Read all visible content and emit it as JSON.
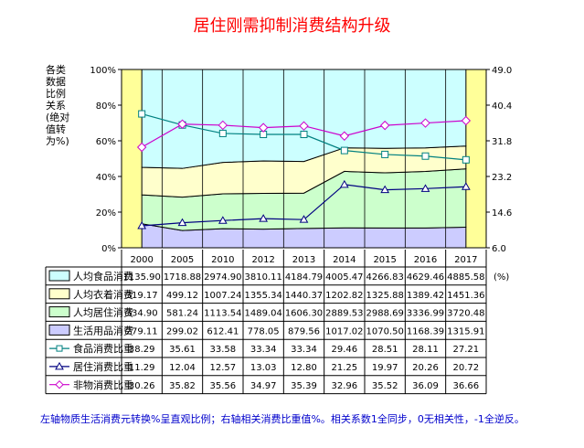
{
  "chart_data": {
    "type": "area",
    "title": "居住刚需抑制消费结构升级",
    "ylabel": "各类\n数据\n比例\n关系\n(绝对\n值转\n为%)",
    "categories": [
      "2000",
      "2005",
      "2010",
      "2012",
      "2013",
      "2014",
      "2015",
      "2016",
      "2017"
    ],
    "left_axis": {
      "ticks": [
        "0%",
        "20%",
        "40%",
        "60%",
        "80%",
        "100%"
      ],
      "range": [
        0,
        100
      ]
    },
    "right_axis": {
      "ticks": [
        "6.0",
        "14.6",
        "23.2",
        "31.8",
        "40.4",
        "49.0"
      ],
      "range": [
        6.0,
        49.0
      ]
    },
    "unit_label": "(%)",
    "area_series": [
      {
        "name": "人均食品消费",
        "color": "#ccffff",
        "values": [
          1135.9,
          1718.88,
          2974.9,
          3810.11,
          4184.79,
          4005.47,
          4266.83,
          4629.46,
          4885.58
        ]
      },
      {
        "name": "人均衣着消费",
        "color": "#ffffcc",
        "values": [
          319.17,
          499.12,
          1007.24,
          1355.34,
          1440.37,
          1202.82,
          1325.88,
          1389.42,
          1451.36
        ]
      },
      {
        "name": "人均居住消费",
        "color": "#ccffcc",
        "values": [
          334.9,
          581.24,
          1113.54,
          1489.04,
          1606.3,
          2889.53,
          2988.69,
          3336.99,
          3720.48
        ]
      },
      {
        "name": "生活用品消费",
        "color": "#ccccff",
        "values": [
          279.11,
          299.02,
          612.41,
          778.05,
          879.56,
          1017.02,
          1070.5,
          1168.39,
          1315.91
        ]
      }
    ],
    "line_series": [
      {
        "name": "食品消费比重",
        "color": "#008080",
        "marker": "square",
        "values": [
          38.29,
          35.61,
          33.58,
          33.34,
          33.34,
          29.46,
          28.51,
          28.11,
          27.21
        ]
      },
      {
        "name": "居住消费比重",
        "color": "#000080",
        "marker": "triangle",
        "values": [
          11.29,
          12.04,
          12.57,
          13.03,
          12.8,
          21.25,
          19.97,
          20.26,
          20.72
        ]
      },
      {
        "name": "非物消费比重",
        "color": "#cc00cc",
        "marker": "diamond",
        "values": [
          30.26,
          35.82,
          35.56,
          34.97,
          35.39,
          32.96,
          35.52,
          36.09,
          36.66
        ]
      }
    ],
    "grid": true
  },
  "footnote": "左轴物质生活消费元转换%呈直观比例；右轴相关消费比重值%。相关系数1全同步，0无相关性，-1全逆反。"
}
